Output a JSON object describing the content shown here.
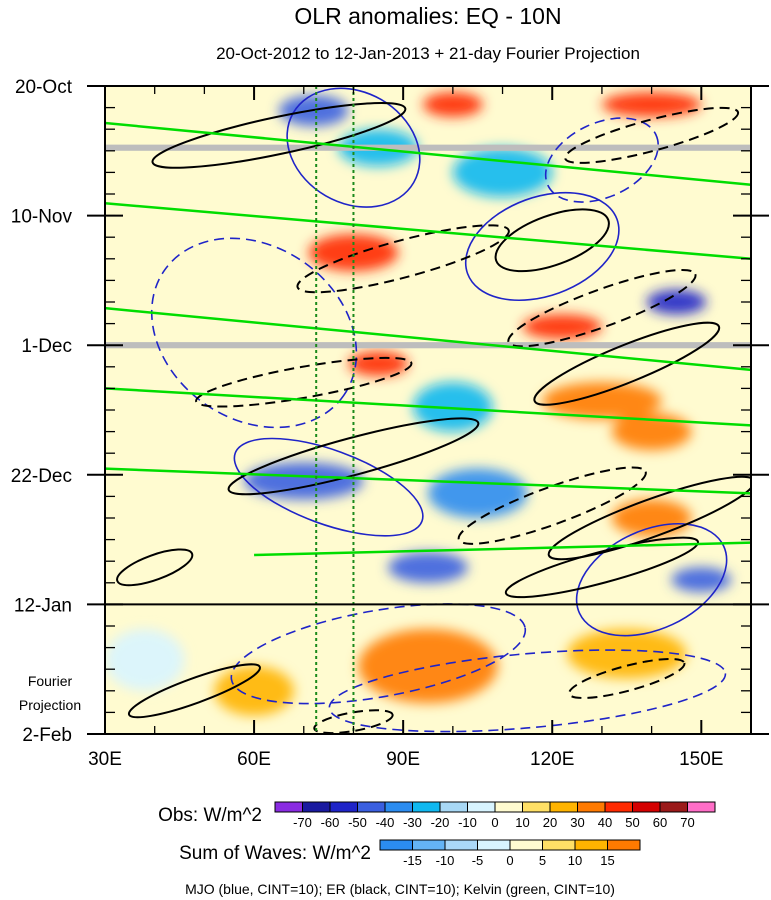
{
  "chart_data": {
    "type": "heatmap",
    "title": "OLR anomalies: EQ - 10N",
    "subtitle": "20-Oct-2012 to 12-Jan-2013 + 21-day Fourier Projection",
    "x_axis": {
      "range": [
        30,
        160
      ],
      "ticks": [
        {
          "value": 30,
          "label": "30E"
        },
        {
          "value": 60,
          "label": "60E"
        },
        {
          "value": 90,
          "label": "90E"
        },
        {
          "value": 120,
          "label": "120E"
        },
        {
          "value": 150,
          "label": "150E"
        }
      ]
    },
    "y_axis": {
      "range_days": [
        0,
        105
      ],
      "direction": "time increases downward",
      "ticks": [
        {
          "value": 0,
          "label": "20-Oct"
        },
        {
          "value": 21,
          "label": "10-Nov"
        },
        {
          "value": 42,
          "label": "1-Dec"
        },
        {
          "value": 63,
          "label": "22-Dec"
        },
        {
          "value": 84,
          "label": "12-Jan"
        },
        {
          "value": 105,
          "label": "2-Feb"
        }
      ]
    },
    "projection": {
      "start_day": 84,
      "label_line1": "Fourier",
      "label_line2": "Projection"
    },
    "reference_lines_lon": [
      72.5,
      80
    ],
    "obs_colorbar": {
      "label": "Obs: W/m^2",
      "levels": [
        "-70",
        "-60",
        "-50",
        "-40",
        "-30",
        "-20",
        "-10",
        "0",
        "10",
        "20",
        "30",
        "40",
        "50",
        "60",
        "70"
      ],
      "colors": [
        "#8a2be2",
        "#1a1aa0",
        "#1f24c8",
        "#3a5fe0",
        "#2b8cf0",
        "#10b8f0",
        "#a8d8f5",
        "#d8f4ff",
        "#fffbd0",
        "#ffe066",
        "#ffb400",
        "#ff7a00",
        "#ff2a00",
        "#d40000",
        "#9b1a1a",
        "#ff6ec7"
      ]
    },
    "waves_colorbar": {
      "label": "Sum of Waves: W/m^2",
      "levels": [
        "-15",
        "-10",
        "-5",
        "0",
        "5",
        "10",
        "15"
      ],
      "colors": [
        "#2b8cf0",
        "#64b4f5",
        "#aad8f8",
        "#d8f4ff",
        "#fffbd0",
        "#ffe066",
        "#ffb400",
        "#ff7a00"
      ]
    },
    "contours_legend": "MJO (blue, CINT=10); ER (black, CINT=10); Kelvin (green, CINT=10)",
    "series": [
      {
        "name": "MJO",
        "color": "#1f24c8",
        "cint": 10
      },
      {
        "name": "ER",
        "color": "#000000",
        "cint": 10
      },
      {
        "name": "Kelvin",
        "color": "#00dd00",
        "cint": 10
      }
    ],
    "anomaly_features": [
      {
        "lon": 72,
        "day": 4,
        "value": -50,
        "rx": 7,
        "rd": 2.5
      },
      {
        "lon": 100,
        "day": 3,
        "value": 40,
        "rx": 6,
        "rd": 2
      },
      {
        "lon": 140,
        "day": 3,
        "value": 40,
        "rx": 10,
        "rd": 2
      },
      {
        "lon": 85,
        "day": 10,
        "value": -30,
        "rx": 8,
        "rd": 3
      },
      {
        "lon": 110,
        "day": 14,
        "value": -30,
        "rx": 10,
        "rd": 4
      },
      {
        "lon": 80,
        "day": 27,
        "value": 40,
        "rx": 9,
        "rd": 3
      },
      {
        "lon": 145,
        "day": 35,
        "value": -60,
        "rx": 6,
        "rd": 2
      },
      {
        "lon": 122,
        "day": 39,
        "value": 40,
        "rx": 8,
        "rd": 2
      },
      {
        "lon": 85,
        "day": 45,
        "value": 40,
        "rx": 6,
        "rd": 2
      },
      {
        "lon": 100,
        "day": 52,
        "value": -30,
        "rx": 8,
        "rd": 4
      },
      {
        "lon": 130,
        "day": 51,
        "value": 30,
        "rx": 12,
        "rd": 3
      },
      {
        "lon": 140,
        "day": 56,
        "value": 30,
        "rx": 8,
        "rd": 3
      },
      {
        "lon": 70,
        "day": 64,
        "value": -50,
        "rx": 12,
        "rd": 3
      },
      {
        "lon": 105,
        "day": 66,
        "value": -40,
        "rx": 10,
        "rd": 4
      },
      {
        "lon": 95,
        "day": 78,
        "value": -50,
        "rx": 8,
        "rd": 2.5
      },
      {
        "lon": 140,
        "day": 70,
        "value": 30,
        "rx": 8,
        "rd": 3
      },
      {
        "lon": 150,
        "day": 80,
        "value": -50,
        "rx": 6,
        "rd": 2
      },
      {
        "lon": 95,
        "day": 94,
        "value": 15,
        "rx": 14,
        "rd": 6
      },
      {
        "lon": 135,
        "day": 92,
        "value": 10,
        "rx": 12,
        "rd": 4
      },
      {
        "lon": 60,
        "day": 98,
        "value": 10,
        "rx": 8,
        "rd": 4
      },
      {
        "lon": 38,
        "day": 93,
        "value": -5,
        "rx": 8,
        "rd": 5
      }
    ],
    "missing_data_rows_days": [
      10,
      42
    ],
    "contours": [
      {
        "series": "MJO",
        "dashed": false,
        "lon": 80,
        "day": 10,
        "rx": 14,
        "rd": 9,
        "rot": 30
      },
      {
        "series": "MJO",
        "dashed": false,
        "lon": 118,
        "day": 26,
        "rx": 16,
        "rd": 8,
        "rot": -20
      },
      {
        "series": "MJO",
        "dashed": false,
        "lon": 75,
        "day": 65,
        "rx": 20,
        "rd": 6,
        "rot": 20
      },
      {
        "series": "MJO",
        "dashed": false,
        "lon": 140,
        "day": 80,
        "rx": 16,
        "rd": 8,
        "rot": -25
      },
      {
        "series": "MJO",
        "dashed": true,
        "lon": 60,
        "day": 40,
        "rx": 22,
        "rd": 14,
        "rot": 35
      },
      {
        "series": "MJO",
        "dashed": true,
        "lon": 130,
        "day": 12,
        "rx": 12,
        "rd": 6,
        "rot": -25
      },
      {
        "series": "MJO",
        "dashed": true,
        "lon": 85,
        "day": 92,
        "rx": 30,
        "rd": 7,
        "rot": -10
      },
      {
        "series": "MJO",
        "dashed": true,
        "lon": 115,
        "day": 98,
        "rx": 40,
        "rd": 6,
        "rot": -5
      },
      {
        "series": "ER",
        "dashed": false,
        "lon": 65,
        "day": 8,
        "rx": 26,
        "rd": 3,
        "rot": -12
      },
      {
        "series": "ER",
        "dashed": false,
        "lon": 120,
        "day": 25,
        "rx": 12,
        "rd": 4,
        "rot": -20
      },
      {
        "series": "ER",
        "dashed": false,
        "lon": 135,
        "day": 45,
        "rx": 20,
        "rd": 3,
        "rot": -22
      },
      {
        "series": "ER",
        "dashed": false,
        "lon": 80,
        "day": 60,
        "rx": 26,
        "rd": 3,
        "rot": -15
      },
      {
        "series": "ER",
        "dashed": false,
        "lon": 140,
        "day": 70,
        "rx": 22,
        "rd": 3,
        "rot": -20
      },
      {
        "series": "ER",
        "dashed": false,
        "lon": 130,
        "day": 78,
        "rx": 20,
        "rd": 2.5,
        "rot": -15
      },
      {
        "series": "ER",
        "dashed": false,
        "lon": 48,
        "day": 98,
        "rx": 14,
        "rd": 2,
        "rot": -20
      },
      {
        "series": "ER",
        "dashed": false,
        "lon": 40,
        "day": 78,
        "rx": 8,
        "rd": 2,
        "rot": -20
      },
      {
        "series": "ER",
        "dashed": true,
        "lon": 90,
        "day": 28,
        "rx": 22,
        "rd": 3,
        "rot": -15
      },
      {
        "series": "ER",
        "dashed": true,
        "lon": 140,
        "day": 8,
        "rx": 18,
        "rd": 2.5,
        "rot": -15
      },
      {
        "series": "ER",
        "dashed": true,
        "lon": 130,
        "day": 36,
        "rx": 20,
        "rd": 3,
        "rot": -20
      },
      {
        "series": "ER",
        "dashed": true,
        "lon": 70,
        "day": 48,
        "rx": 22,
        "rd": 2.5,
        "rot": -10
      },
      {
        "series": "ER",
        "dashed": true,
        "lon": 120,
        "day": 68,
        "rx": 20,
        "rd": 3,
        "rot": -20
      },
      {
        "series": "ER",
        "dashed": true,
        "lon": 135,
        "day": 96,
        "rx": 12,
        "rd": 2,
        "rot": -15
      },
      {
        "series": "ER",
        "dashed": true,
        "lon": 80,
        "day": 103,
        "rx": 8,
        "rd": 1.5,
        "rot": -10
      }
    ],
    "kelvin_lines": [
      {
        "lon0": 30,
        "day0": 6,
        "lon1": 160,
        "day1": 16
      },
      {
        "lon0": 30,
        "day0": 19,
        "lon1": 160,
        "day1": 28
      },
      {
        "lon0": 30,
        "day0": 36,
        "lon1": 160,
        "day1": 46
      },
      {
        "lon0": 30,
        "day0": 49,
        "lon1": 160,
        "day1": 55
      },
      {
        "lon0": 30,
        "day0": 62,
        "lon1": 160,
        "day1": 66
      },
      {
        "lon0": 60,
        "day0": 76,
        "lon1": 160,
        "day1": 74
      }
    ]
  }
}
